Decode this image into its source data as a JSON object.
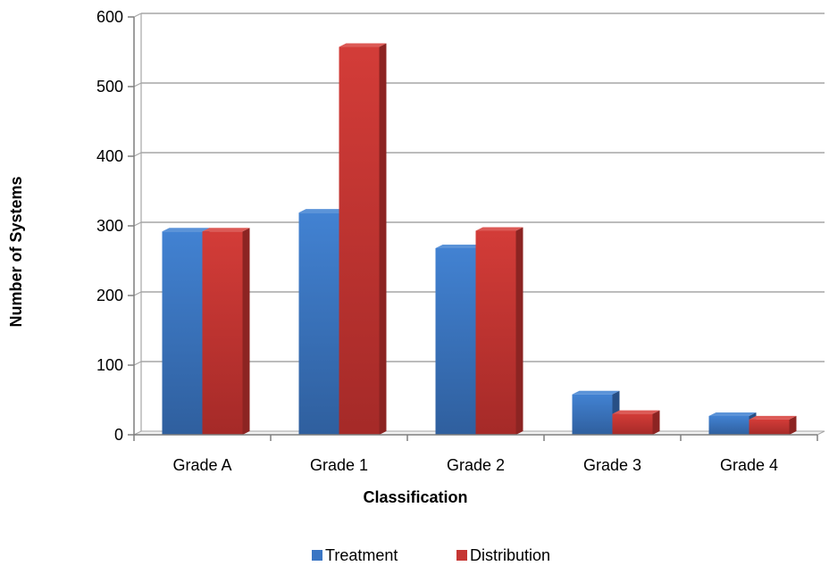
{
  "chart_data": {
    "type": "bar",
    "categories": [
      "Grade A",
      "Grade 1",
      "Grade 2",
      "Grade 3",
      "Grade 4"
    ],
    "series": [
      {
        "name": "Treatment",
        "values": [
          292,
          319,
          268,
          58,
          27
        ],
        "color": "#3a76c4"
      },
      {
        "name": "Distribution",
        "values": [
          292,
          557,
          293,
          30,
          22
        ],
        "color": "#c63633"
      }
    ],
    "title": "",
    "xlabel": "Classification",
    "ylabel": "Number of Systems",
    "ylim": [
      0,
      600
    ],
    "yticks": [
      0,
      100,
      200,
      300,
      400,
      500,
      600
    ],
    "grid": true,
    "legend_position": "bottom"
  }
}
